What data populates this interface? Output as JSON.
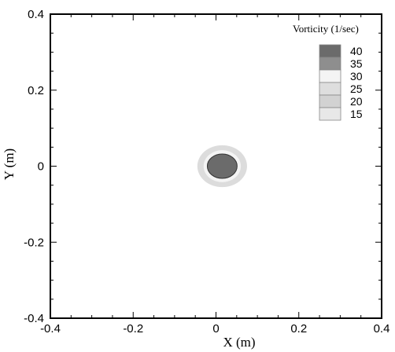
{
  "chart_data": {
    "type": "contour",
    "xlabel": "X (m)",
    "ylabel": "Y (m)",
    "xlim": [
      -0.4,
      0.4
    ],
    "ylim": [
      -0.4,
      0.4
    ],
    "xticks": [
      "-0.4",
      "-0.2",
      "0",
      "0.2",
      "0.4"
    ],
    "yticks": [
      "-0.4",
      "-0.2",
      "0",
      "0.2",
      "0.4"
    ],
    "grid": false,
    "legend": {
      "title": "Vorticity (1/sec)",
      "placement": "top-right",
      "levels": [
        {
          "label": "40",
          "color": "#6b6b6b"
        },
        {
          "label": "35",
          "color": "#8e8e8e"
        },
        {
          "label": "30",
          "color": "#f4f4f4"
        },
        {
          "label": "25",
          "color": "#dedede"
        },
        {
          "label": "20",
          "color": "#d2d2d2"
        },
        {
          "label": "15",
          "color": "#e8e8e8"
        }
      ]
    },
    "contours": [
      {
        "level": 15,
        "center": [
          0.015,
          0.0
        ],
        "radius_x": 0.06,
        "radius_y": 0.055,
        "color": "#dcdcdc"
      },
      {
        "level": 30,
        "center": [
          0.015,
          0.0
        ],
        "radius_x": 0.045,
        "radius_y": 0.042,
        "color": "#f4f4f4"
      },
      {
        "level": 40,
        "center": [
          0.015,
          0.0
        ],
        "radius_x": 0.036,
        "radius_y": 0.032,
        "color": "#6b6b6b"
      }
    ]
  }
}
